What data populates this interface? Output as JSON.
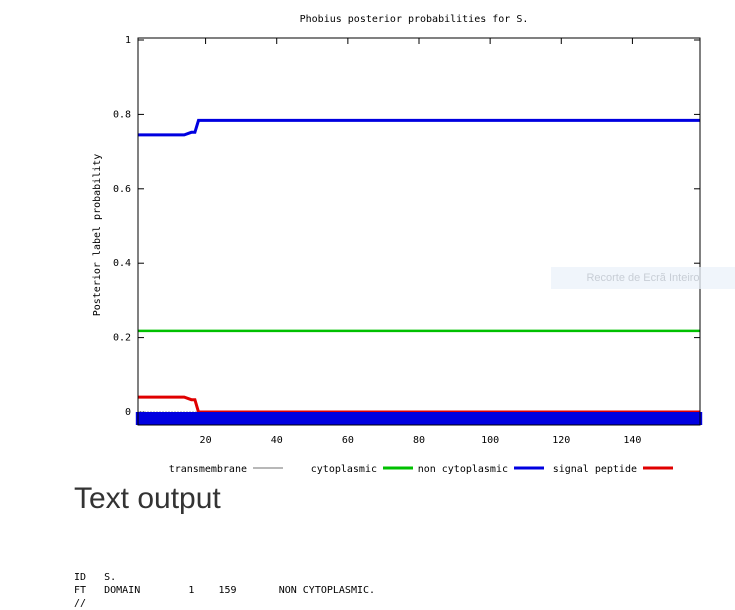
{
  "chart_data": {
    "type": "line",
    "title": "Phobius posterior probabilities for S.",
    "xlabel": "",
    "ylabel": "Posterior label probability",
    "xlim": [
      1,
      159
    ],
    "ylim": [
      0,
      1
    ],
    "x_ticks": [
      20,
      40,
      60,
      80,
      100,
      120,
      140
    ],
    "y_ticks": [
      0,
      0.2,
      0.4,
      0.6,
      0.8,
      1
    ],
    "grid": false,
    "legend_position": "bottom",
    "series": [
      {
        "name": "transmembrane",
        "color": "#a0a0a0",
        "x": [
          1,
          159
        ],
        "y": [
          0,
          0
        ]
      },
      {
        "name": "cytoplasmic",
        "color": "#00c000",
        "x": [
          1,
          159
        ],
        "y": [
          0.218,
          0.218
        ]
      },
      {
        "name": "non cytoplasmic",
        "color": "#0000e0",
        "x": [
          1,
          14,
          16,
          17,
          18,
          159
        ],
        "y": [
          0.745,
          0.745,
          0.752,
          0.752,
          0.784,
          0.784
        ]
      },
      {
        "name": "signal peptide",
        "color": "#e00000",
        "x": [
          1,
          14,
          16,
          17,
          18,
          159
        ],
        "y": [
          0.04,
          0.04,
          0.033,
          0.033,
          0,
          0
        ]
      }
    ]
  },
  "overlay_label": "Recorte de Ecrã Inteiro",
  "text_output": {
    "heading": "Text output",
    "lines": [
      "ID   S.",
      "FT   DOMAIN        1    159       NON CYTOPLASMIC.",
      "//"
    ]
  }
}
